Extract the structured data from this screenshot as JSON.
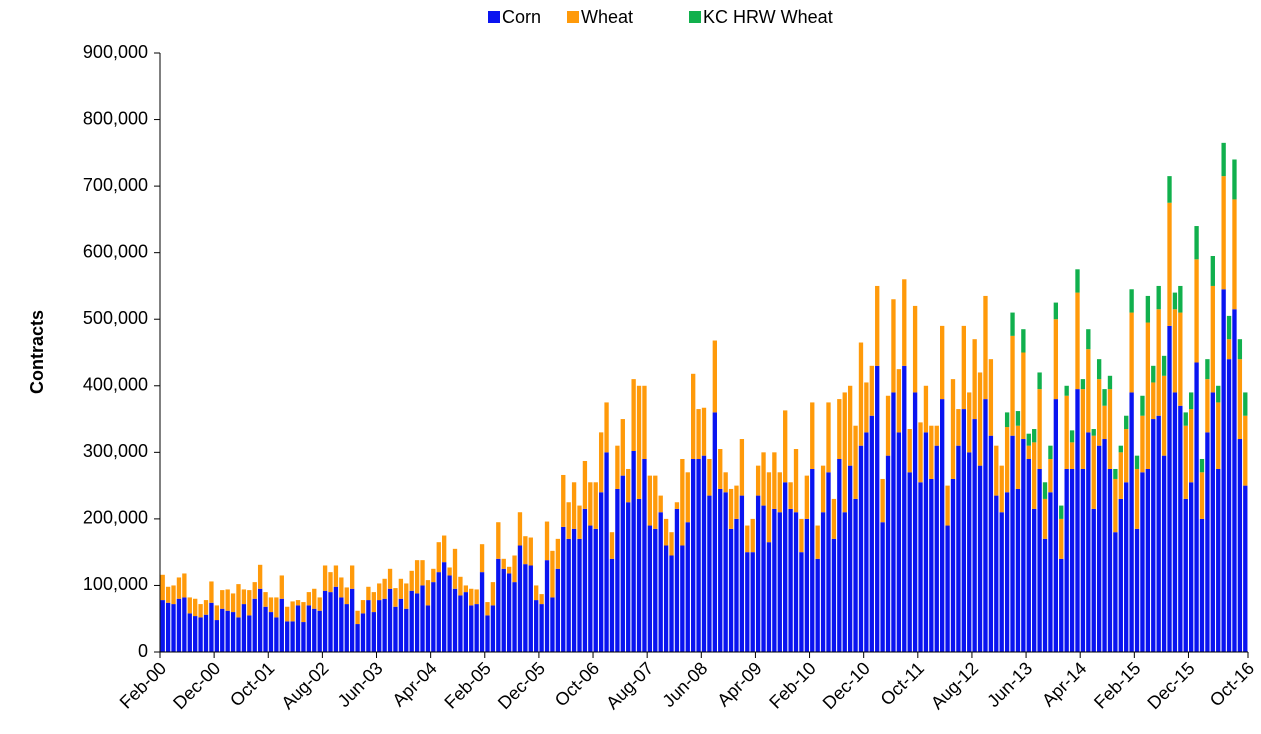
{
  "chart_data": {
    "type": "stacked_bar",
    "y_label": "Contracts",
    "categories": [
      "Feb-00",
      null,
      null,
      null,
      null,
      null,
      null,
      null,
      null,
      null,
      "Dec-00",
      null,
      null,
      null,
      null,
      null,
      null,
      null,
      null,
      null,
      "Oct-01",
      null,
      null,
      null,
      null,
      null,
      null,
      null,
      null,
      null,
      "Aug-02",
      null,
      null,
      null,
      null,
      null,
      null,
      null,
      null,
      null,
      "Jun-03",
      null,
      null,
      null,
      null,
      null,
      null,
      null,
      null,
      null,
      "Apr-04",
      null,
      null,
      null,
      null,
      null,
      null,
      null,
      null,
      null,
      "Feb-05",
      null,
      null,
      null,
      null,
      null,
      null,
      null,
      null,
      null,
      "Dec-05",
      null,
      null,
      null,
      null,
      null,
      null,
      null,
      null,
      null,
      "Oct-06",
      null,
      null,
      null,
      null,
      null,
      null,
      null,
      null,
      null,
      "Aug-07",
      null,
      null,
      null,
      null,
      null,
      null,
      null,
      null,
      null,
      "Jun-08",
      null,
      null,
      null,
      null,
      null,
      null,
      null,
      null,
      null,
      "Apr-09",
      null,
      null,
      null,
      null,
      null,
      null,
      null,
      null,
      null,
      "Feb-10",
      null,
      null,
      null,
      null,
      null,
      null,
      null,
      null,
      null,
      "Dec-10",
      null,
      null,
      null,
      null,
      null,
      null,
      null,
      null,
      null,
      "Oct-11",
      null,
      null,
      null,
      null,
      null,
      null,
      null,
      null,
      null,
      "Aug-12",
      null,
      null,
      null,
      null,
      null,
      null,
      null,
      null,
      null,
      "Jun-13",
      null,
      null,
      null,
      null,
      null,
      null,
      null,
      null,
      null,
      "Apr-14",
      null,
      null,
      null,
      null,
      null,
      null,
      null,
      null,
      null,
      "Feb-15",
      null,
      null,
      null,
      null,
      null,
      null,
      null,
      null,
      null,
      "Dec-15",
      null,
      null,
      null,
      null,
      null,
      null,
      null,
      null,
      null,
      "Oct-16"
    ],
    "series": [
      {
        "name": "Corn",
        "color": "#0a14f0",
        "values": [
          78000,
          74000,
          72000,
          80000,
          82000,
          58000,
          54000,
          52000,
          56000,
          74000,
          48000,
          65000,
          62000,
          60000,
          52000,
          72000,
          55000,
          80000,
          95000,
          68000,
          60000,
          52000,
          80000,
          46000,
          46000,
          70000,
          45000,
          70000,
          65000,
          62000,
          92000,
          90000,
          98000,
          82000,
          72000,
          95000,
          42000,
          58000,
          78000,
          60000,
          78000,
          80000,
          95000,
          68000,
          80000,
          65000,
          92000,
          88000,
          100000,
          70000,
          105000,
          120000,
          135000,
          115000,
          95000,
          85000,
          90000,
          70000,
          72000,
          120000,
          55000,
          70000,
          140000,
          125000,
          118000,
          105000,
          160000,
          132000,
          130000,
          78000,
          72000,
          138000,
          82000,
          125000,
          188000,
          170000,
          185000,
          170000,
          215000,
          190000,
          185000,
          240000,
          300000,
          140000,
          245000,
          265000,
          225000,
          302000,
          230000,
          290000,
          190000,
          185000,
          210000,
          160000,
          145000,
          215000,
          160000,
          195000,
          290000,
          290000,
          295000,
          235000,
          360000,
          245000,
          240000,
          185000,
          200000,
          235000,
          150000,
          150000,
          235000,
          220000,
          165000,
          215000,
          210000,
          255000,
          215000,
          210000,
          150000,
          200000,
          275000,
          140000,
          210000,
          270000,
          170000,
          290000,
          210000,
          280000,
          230000,
          310000,
          330000,
          355000,
          430000,
          195000,
          295000,
          390000,
          330000,
          430000,
          270000,
          390000,
          255000,
          330000,
          260000,
          310000,
          380000,
          190000,
          260000,
          310000,
          365000,
          300000,
          350000,
          280000,
          380000,
          325000,
          235000,
          210000,
          240000,
          325000,
          245000,
          320000,
          290000,
          215000,
          275000,
          170000,
          240000,
          380000,
          140000,
          275000,
          275000,
          395000,
          275000,
          330000,
          215000,
          310000,
          320000,
          275000,
          180000,
          230000,
          255000,
          390000,
          185000,
          270000,
          275000,
          350000,
          355000,
          295000,
          490000,
          390000,
          370000,
          230000,
          255000,
          435000,
          200000,
          330000,
          390000,
          275000,
          545000,
          440000,
          515000,
          320000,
          250000
        ]
      },
      {
        "name": "Wheat",
        "color": "#ff9a0a",
        "values": [
          38000,
          24000,
          28000,
          32000,
          36000,
          24000,
          26000,
          20000,
          22000,
          32000,
          22000,
          28000,
          32000,
          28000,
          50000,
          22000,
          38000,
          25000,
          36000,
          22000,
          22000,
          30000,
          35000,
          22000,
          30000,
          8000,
          30000,
          20000,
          30000,
          20000,
          38000,
          30000,
          32000,
          30000,
          25000,
          35000,
          20000,
          20000,
          20000,
          30000,
          25000,
          30000,
          30000,
          28000,
          30000,
          38000,
          30000,
          50000,
          38000,
          38000,
          20000,
          45000,
          40000,
          12000,
          60000,
          28000,
          10000,
          25000,
          22000,
          42000,
          20000,
          35000,
          55000,
          15000,
          10000,
          40000,
          50000,
          42000,
          42000,
          22000,
          15000,
          58000,
          70000,
          45000,
          78000,
          55000,
          70000,
          50000,
          72000,
          65000,
          70000,
          90000,
          75000,
          40000,
          65000,
          85000,
          50000,
          108000,
          170000,
          110000,
          75000,
          80000,
          25000,
          40000,
          35000,
          10000,
          130000,
          75000,
          128000,
          75000,
          72000,
          55000,
          108000,
          60000,
          30000,
          60000,
          50000,
          85000,
          40000,
          50000,
          45000,
          80000,
          105000,
          85000,
          60000,
          108000,
          40000,
          95000,
          50000,
          65000,
          100000,
          50000,
          70000,
          105000,
          60000,
          90000,
          180000,
          120000,
          110000,
          155000,
          75000,
          75000,
          120000,
          65000,
          90000,
          140000,
          95000,
          130000,
          65000,
          130000,
          90000,
          70000,
          80000,
          30000,
          110000,
          60000,
          150000,
          55000,
          125000,
          90000,
          120000,
          140000,
          155000,
          115000,
          75000,
          70000,
          98000,
          150000,
          95000,
          130000,
          20000,
          100000,
          120000,
          60000,
          50000,
          120000,
          60000,
          110000,
          40000,
          145000,
          120000,
          125000,
          110000,
          100000,
          50000,
          120000,
          80000,
          70000,
          80000,
          120000,
          90000,
          85000,
          220000,
          55000,
          160000,
          120000,
          185000,
          125000,
          140000,
          110000,
          110000,
          155000,
          70000,
          80000,
          160000,
          100000,
          170000,
          30000,
          165000,
          120000,
          105000
        ]
      },
      {
        "name": "KC HRW Wheat",
        "color": "#11b04d",
        "values": [
          null,
          null,
          null,
          null,
          null,
          null,
          null,
          null,
          null,
          null,
          null,
          null,
          null,
          null,
          null,
          null,
          null,
          null,
          null,
          null,
          null,
          null,
          null,
          null,
          null,
          null,
          null,
          null,
          null,
          null,
          null,
          null,
          null,
          null,
          null,
          null,
          null,
          null,
          null,
          null,
          null,
          null,
          null,
          null,
          null,
          null,
          null,
          null,
          null,
          null,
          null,
          null,
          null,
          null,
          null,
          null,
          null,
          null,
          null,
          null,
          null,
          null,
          null,
          null,
          null,
          null,
          null,
          null,
          null,
          null,
          null,
          null,
          null,
          null,
          null,
          null,
          null,
          null,
          null,
          null,
          null,
          null,
          null,
          null,
          null,
          null,
          null,
          null,
          null,
          null,
          null,
          null,
          null,
          null,
          null,
          null,
          null,
          null,
          null,
          null,
          null,
          null,
          null,
          null,
          null,
          null,
          null,
          null,
          null,
          null,
          null,
          null,
          null,
          null,
          null,
          null,
          null,
          null,
          null,
          null,
          null,
          null,
          null,
          null,
          null,
          null,
          null,
          null,
          null,
          null,
          null,
          null,
          null,
          null,
          null,
          null,
          null,
          null,
          null,
          null,
          null,
          null,
          null,
          null,
          null,
          null,
          null,
          null,
          null,
          null,
          null,
          null,
          null,
          null,
          null,
          null,
          22000,
          35000,
          22000,
          35000,
          18000,
          20000,
          25000,
          25000,
          20000,
          25000,
          20000,
          15000,
          18000,
          35000,
          15000,
          30000,
          10000,
          30000,
          25000,
          20000,
          15000,
          10000,
          20000,
          35000,
          20000,
          30000,
          40000,
          25000,
          35000,
          30000,
          40000,
          25000,
          40000,
          20000,
          25000,
          50000,
          20000,
          30000,
          45000,
          25000,
          50000,
          35000,
          60000,
          30000,
          35000
        ]
      }
    ],
    "ylim": [
      0,
      900000
    ],
    "yticks": [
      0,
      {
        "value": 100000,
        "label": "100,000"
      },
      {
        "value": 200000,
        "label": "200,000"
      },
      {
        "value": 300000,
        "label": "300,000"
      },
      {
        "value": 400000,
        "label": "400,000"
      },
      {
        "value": 500000,
        "label": "500,000"
      },
      {
        "value": 600000,
        "label": "600,000"
      },
      {
        "value": 700000,
        "label": "700,000"
      },
      {
        "value": 800000,
        "label": "800,000"
      },
      {
        "value": 900000,
        "label": "900,000"
      }
    ],
    "legend": "top"
  }
}
